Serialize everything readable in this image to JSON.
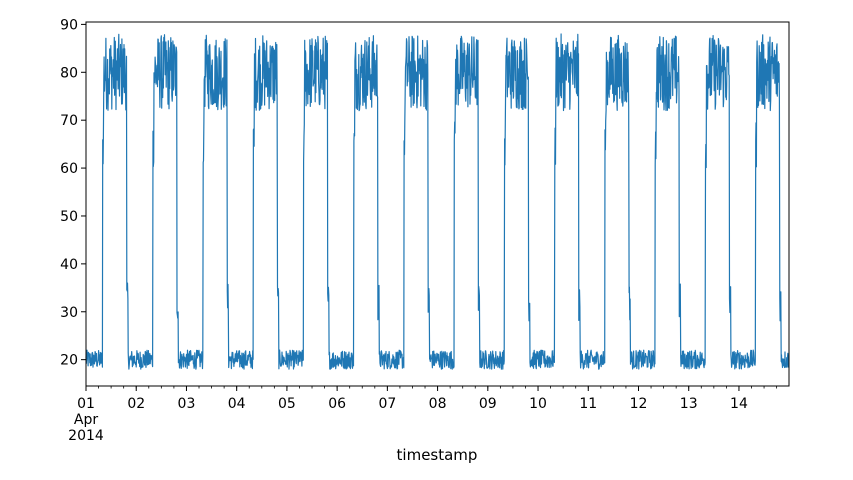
{
  "chart_data": {
    "type": "line",
    "title": "",
    "xlabel": "timestamp",
    "ylabel": "",
    "x_range": [
      "2014-04-01",
      "2014-04-14 23:55"
    ],
    "ylim": [
      14.5,
      90.5
    ],
    "grid": false,
    "legend": "none",
    "y_ticks": [
      20,
      30,
      40,
      50,
      60,
      70,
      80,
      90
    ],
    "x_ticks": [
      {
        "date": "2014-04-01",
        "label": "01",
        "sub1": "Apr",
        "sub2": "2014"
      },
      {
        "date": "2014-04-02",
        "label": "02"
      },
      {
        "date": "2014-04-03",
        "label": "03"
      },
      {
        "date": "2014-04-04",
        "label": "04"
      },
      {
        "date": "2014-04-05",
        "label": "05"
      },
      {
        "date": "2014-04-06",
        "label": "06"
      },
      {
        "date": "2014-04-07",
        "label": "07"
      },
      {
        "date": "2014-04-08",
        "label": "08"
      },
      {
        "date": "2014-04-09",
        "label": "09"
      },
      {
        "date": "2014-04-10",
        "label": "10"
      },
      {
        "date": "2014-04-11",
        "label": "11"
      },
      {
        "date": "2014-04-12",
        "label": "12"
      },
      {
        "date": "2014-04-13",
        "label": "13"
      },
      {
        "date": "2014-04-14",
        "label": "14"
      }
    ],
    "series": [
      {
        "color": "#1f77b4",
        "daily_pattern": {
          "low_level_range": [
            18,
            22
          ],
          "high_level_range": [
            72,
            88
          ],
          "rise_hour": 8.0,
          "fall_hour": 19.5
        }
      }
    ]
  }
}
